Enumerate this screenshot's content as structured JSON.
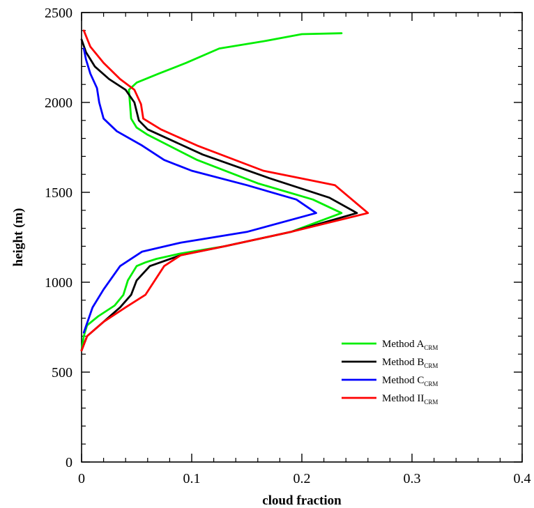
{
  "chart_data": {
    "type": "line",
    "title": "",
    "xlabel": "cloud fraction",
    "ylabel": "height (m)",
    "xlim": [
      0,
      0.4
    ],
    "ylim": [
      0,
      2500
    ],
    "xticks": [
      0,
      0.1,
      0.2,
      0.3,
      0.4
    ],
    "yticks": [
      0,
      500,
      1000,
      1500,
      2000,
      2500
    ],
    "xtick_labels": [
      "0",
      "0.1",
      "0.2",
      "0.3",
      "0.4"
    ],
    "ytick_labels": [
      "0",
      "500",
      "1000",
      "1500",
      "2000",
      "2500"
    ],
    "grid": false,
    "legend_position": "lower-right",
    "series": [
      {
        "name": "Method A",
        "subscript": "CRM",
        "color": "#00ee00",
        "x": [
          0.0,
          0.002,
          0.005,
          0.015,
          0.03,
          0.038,
          0.042,
          0.05,
          0.058,
          0.068,
          0.09,
          0.13,
          0.19,
          0.236,
          0.21,
          0.16,
          0.105,
          0.06,
          0.05,
          0.045,
          0.043,
          0.05,
          0.07,
          0.095,
          0.125,
          0.165,
          0.2,
          0.236
        ],
        "y": [
          620,
          700,
          760,
          810,
          870,
          930,
          1010,
          1090,
          1110,
          1130,
          1160,
          1200,
          1280,
          1385,
          1460,
          1550,
          1680,
          1820,
          1860,
          1910,
          2070,
          2110,
          2160,
          2220,
          2300,
          2340,
          2380,
          2385
        ]
      },
      {
        "name": "Method B",
        "subscript": "CRM",
        "color": "#000000",
        "x": [
          0.0,
          0.005,
          0.02,
          0.035,
          0.045,
          0.05,
          0.062,
          0.09,
          0.13,
          0.19,
          0.25,
          0.225,
          0.17,
          0.11,
          0.06,
          0.052,
          0.048,
          0.04,
          0.025,
          0.012,
          0.004,
          0.0
        ],
        "y": [
          620,
          700,
          780,
          860,
          930,
          1010,
          1090,
          1150,
          1200,
          1280,
          1385,
          1470,
          1580,
          1710,
          1850,
          1900,
          2000,
          2070,
          2130,
          2200,
          2280,
          2350
        ]
      },
      {
        "name": "Method C",
        "subscript": "CRM",
        "color": "#0000ff",
        "x": [
          0.002,
          0.01,
          0.02,
          0.035,
          0.055,
          0.09,
          0.15,
          0.213,
          0.195,
          0.15,
          0.1,
          0.075,
          0.055,
          0.032,
          0.02,
          0.016,
          0.014,
          0.008,
          0.004,
          0.002
        ],
        "y": [
          720,
          860,
          960,
          1090,
          1170,
          1220,
          1280,
          1385,
          1460,
          1540,
          1620,
          1680,
          1760,
          1840,
          1910,
          2000,
          2080,
          2160,
          2240,
          2300
        ]
      },
      {
        "name": "Method II",
        "subscript": "CRM",
        "color": "#ff0000",
        "x": [
          0.0,
          0.005,
          0.02,
          0.04,
          0.058,
          0.075,
          0.09,
          0.13,
          0.19,
          0.26,
          0.23,
          0.165,
          0.105,
          0.072,
          0.056,
          0.054,
          0.048,
          0.035,
          0.02,
          0.008,
          0.002
        ],
        "y": [
          620,
          700,
          780,
          860,
          930,
          1090,
          1150,
          1200,
          1280,
          1385,
          1540,
          1620,
          1760,
          1850,
          1910,
          1990,
          2070,
          2130,
          2220,
          2310,
          2400
        ]
      }
    ]
  }
}
